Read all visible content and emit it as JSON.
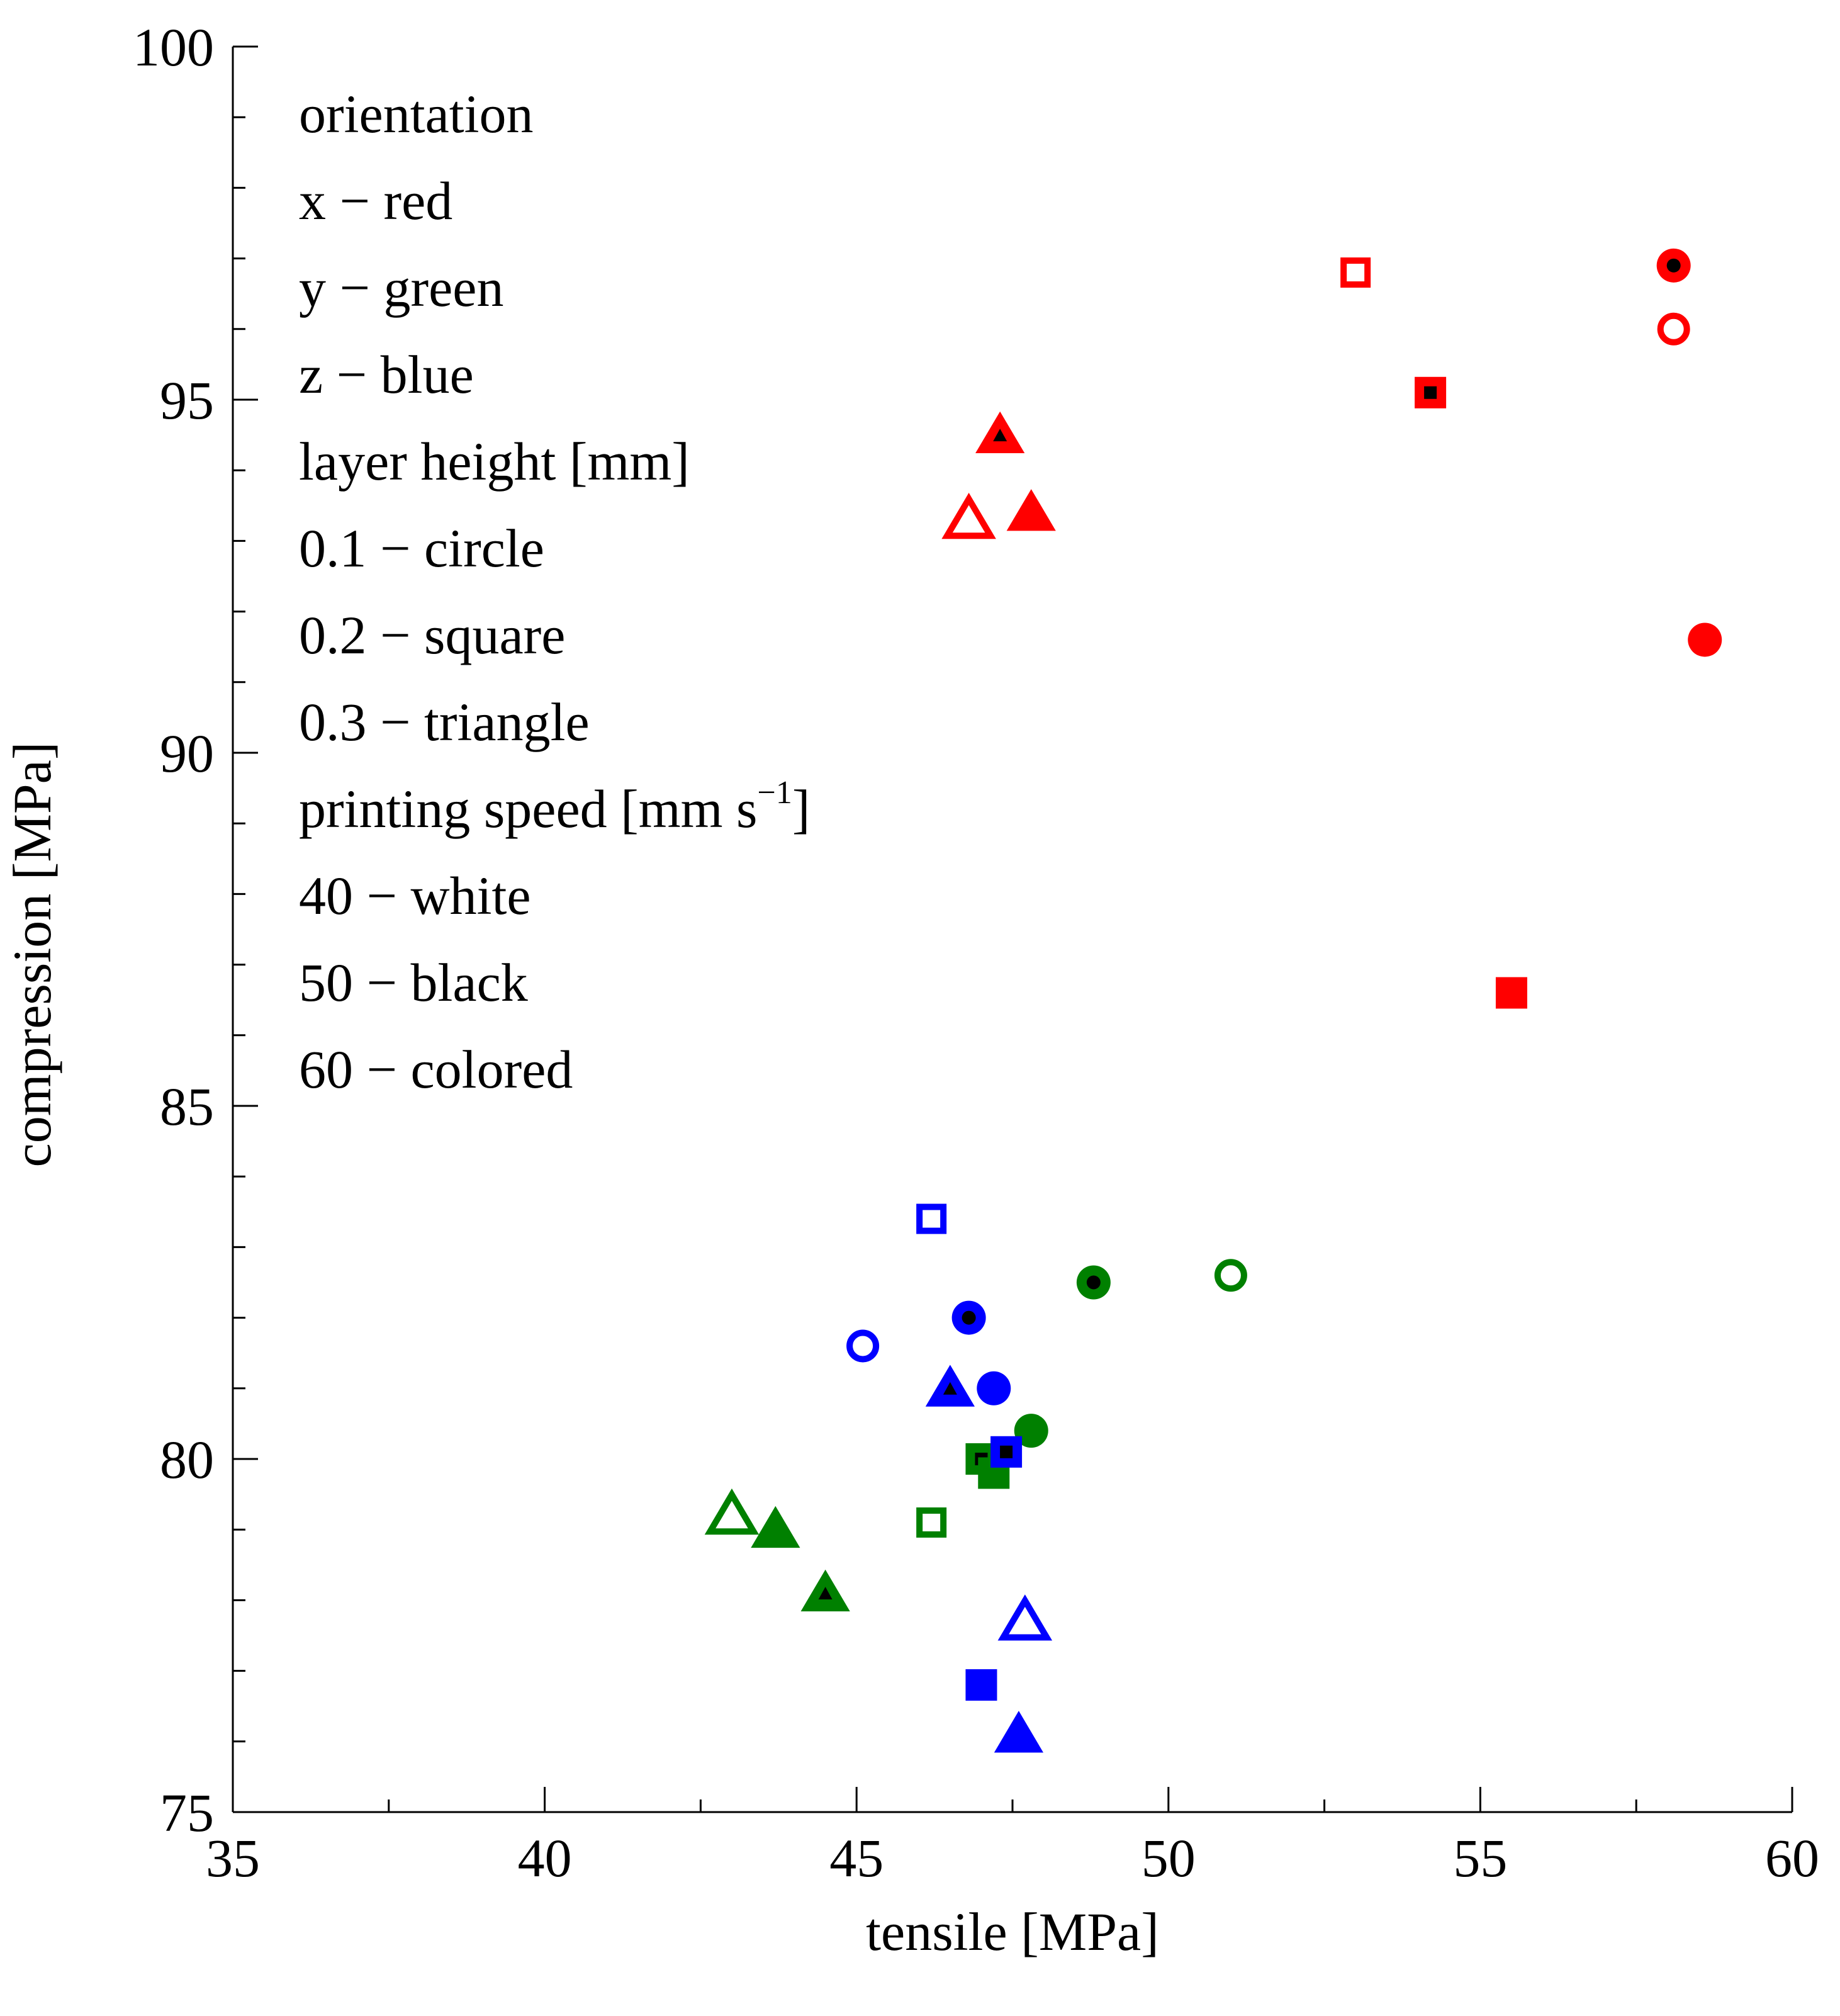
{
  "chart_data": {
    "type": "scatter",
    "title": "",
    "xlabel": "tensile [MPa]",
    "ylabel": "compression [MPa]",
    "xlim": [
      35,
      60
    ],
    "ylim": [
      75,
      100
    ],
    "xticks": [
      35,
      40,
      45,
      50,
      55,
      60
    ],
    "yticks": [
      75,
      80,
      85,
      90,
      95,
      100
    ],
    "grid": false,
    "legend_text": {
      "placement": "top-left",
      "lines": [
        "orientation",
        "x − red",
        "y − green",
        "z − blue",
        "layer height [mm]",
        "0.1 − circle",
        "0.2 − square",
        "0.3 − triangle",
        "printing speed [mm s",
        "40 − white",
        "50 − black",
        "60 − colored"
      ],
      "speed_unit_superscript": "−1",
      "speed_unit_close": "]"
    },
    "colors": {
      "x": "#ff0000",
      "y": "#008000",
      "z": "#0000ff"
    },
    "points": [
      {
        "x": 58.1,
        "y": 96.9,
        "orientation": "x",
        "shape": "circle",
        "speed": 50
      },
      {
        "x": 58.1,
        "y": 96.0,
        "orientation": "x",
        "shape": "circle",
        "speed": 40
      },
      {
        "x": 58.6,
        "y": 91.6,
        "orientation": "x",
        "shape": "circle",
        "speed": 60
      },
      {
        "x": 53.0,
        "y": 96.8,
        "orientation": "x",
        "shape": "square",
        "speed": 40
      },
      {
        "x": 54.2,
        "y": 95.1,
        "orientation": "x",
        "shape": "square",
        "speed": 50
      },
      {
        "x": 55.5,
        "y": 86.6,
        "orientation": "x",
        "shape": "square",
        "speed": 60
      },
      {
        "x": 47.3,
        "y": 94.5,
        "orientation": "x",
        "shape": "triangle",
        "speed": 50
      },
      {
        "x": 46.8,
        "y": 93.3,
        "orientation": "x",
        "shape": "triangle",
        "speed": 40
      },
      {
        "x": 47.8,
        "y": 93.4,
        "orientation": "x",
        "shape": "triangle",
        "speed": 60
      },
      {
        "x": 48.8,
        "y": 82.5,
        "orientation": "y",
        "shape": "circle",
        "speed": 50
      },
      {
        "x": 51.0,
        "y": 82.6,
        "orientation": "y",
        "shape": "circle",
        "speed": 40
      },
      {
        "x": 47.8,
        "y": 80.4,
        "orientation": "y",
        "shape": "circle",
        "speed": 60
      },
      {
        "x": 47.0,
        "y": 80.0,
        "orientation": "y",
        "shape": "square",
        "speed": 50
      },
      {
        "x": 47.2,
        "y": 79.8,
        "orientation": "y",
        "shape": "square",
        "speed": 60
      },
      {
        "x": 46.2,
        "y": 79.1,
        "orientation": "y",
        "shape": "square",
        "speed": 40
      },
      {
        "x": 43.0,
        "y": 79.2,
        "orientation": "y",
        "shape": "triangle",
        "speed": 40
      },
      {
        "x": 43.7,
        "y": 79.0,
        "orientation": "y",
        "shape": "triangle",
        "speed": 60
      },
      {
        "x": 44.5,
        "y": 78.1,
        "orientation": "y",
        "shape": "triangle",
        "speed": 50
      },
      {
        "x": 46.8,
        "y": 82.0,
        "orientation": "z",
        "shape": "circle",
        "speed": 50
      },
      {
        "x": 45.1,
        "y": 81.6,
        "orientation": "z",
        "shape": "circle",
        "speed": 40
      },
      {
        "x": 47.2,
        "y": 81.0,
        "orientation": "z",
        "shape": "circle",
        "speed": 60
      },
      {
        "x": 46.2,
        "y": 83.4,
        "orientation": "z",
        "shape": "square",
        "speed": 40
      },
      {
        "x": 47.4,
        "y": 80.1,
        "orientation": "z",
        "shape": "square",
        "speed": 50
      },
      {
        "x": 47.0,
        "y": 76.8,
        "orientation": "z",
        "shape": "square",
        "speed": 60
      },
      {
        "x": 46.5,
        "y": 81.0,
        "orientation": "z",
        "shape": "triangle",
        "speed": 50
      },
      {
        "x": 47.7,
        "y": 77.7,
        "orientation": "z",
        "shape": "triangle",
        "speed": 40
      },
      {
        "x": 47.6,
        "y": 76.1,
        "orientation": "z",
        "shape": "triangle",
        "speed": 60
      }
    ]
  }
}
